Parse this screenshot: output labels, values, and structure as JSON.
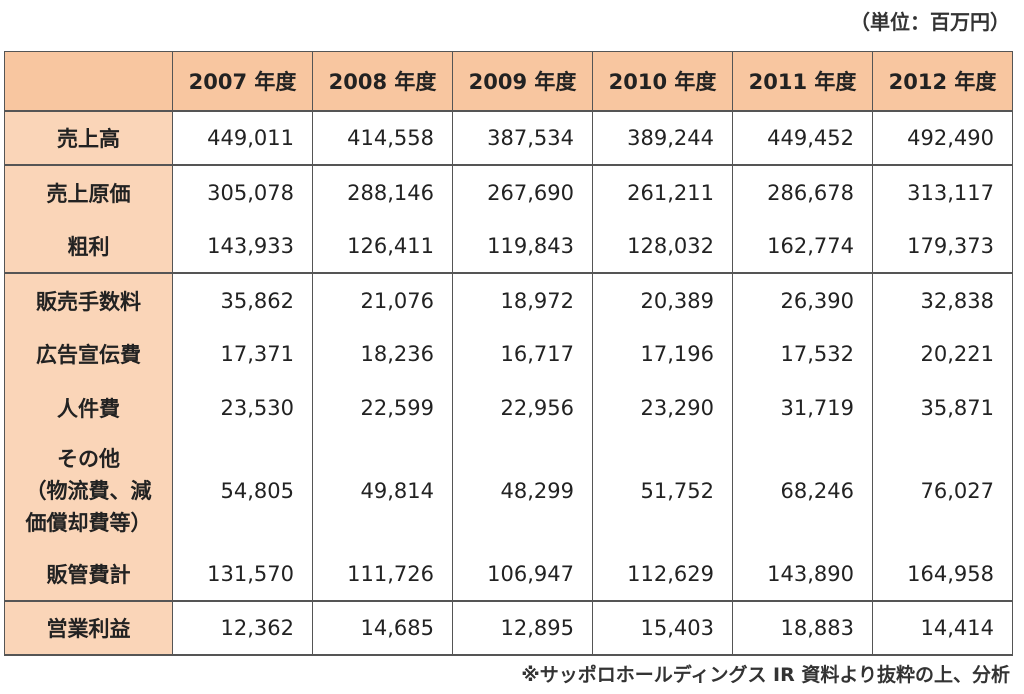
{
  "unit_label": "（単位：百万円）",
  "columns": [
    "2007 年度",
    "2008 年度",
    "2009 年度",
    "2010 年度",
    "2011 年度",
    "2012 年度"
  ],
  "rows": [
    {
      "label": "売上高",
      "values": [
        "449,011",
        "414,558",
        "387,534",
        "389,244",
        "449,452",
        "492,490"
      ]
    },
    {
      "label": "売上原価",
      "values": [
        "305,078",
        "288,146",
        "267,690",
        "261,211",
        "286,678",
        "313,117"
      ]
    },
    {
      "label": "粗利",
      "values": [
        "143,933",
        "126,411",
        "119,843",
        "128,032",
        "162,774",
        "179,373"
      ]
    },
    {
      "label": "販売手数料",
      "values": [
        "35,862",
        "21,076",
        "18,972",
        "20,389",
        "26,390",
        "32,838"
      ]
    },
    {
      "label": "広告宣伝費",
      "values": [
        "17,371",
        "18,236",
        "16,717",
        "17,196",
        "17,532",
        "20,221"
      ]
    },
    {
      "label": "人件費",
      "values": [
        "23,530",
        "22,599",
        "22,956",
        "23,290",
        "31,719",
        "35,871"
      ]
    },
    {
      "label_lines": [
        "その他",
        "（物流費、減",
        "価償却費等）"
      ],
      "values": [
        "54,805",
        "49,814",
        "48,299",
        "51,752",
        "68,246",
        "76,027"
      ]
    },
    {
      "label": "販管費計",
      "values": [
        "131,570",
        "111,726",
        "106,947",
        "112,629",
        "143,890",
        "164,958"
      ]
    },
    {
      "label": "営業利益",
      "values": [
        "12,362",
        "14,685",
        "12,895",
        "15,403",
        "18,883",
        "14,414"
      ]
    }
  ],
  "source_note": "※サッポロホールディングス IR 資料より抜粋の上、分析"
}
